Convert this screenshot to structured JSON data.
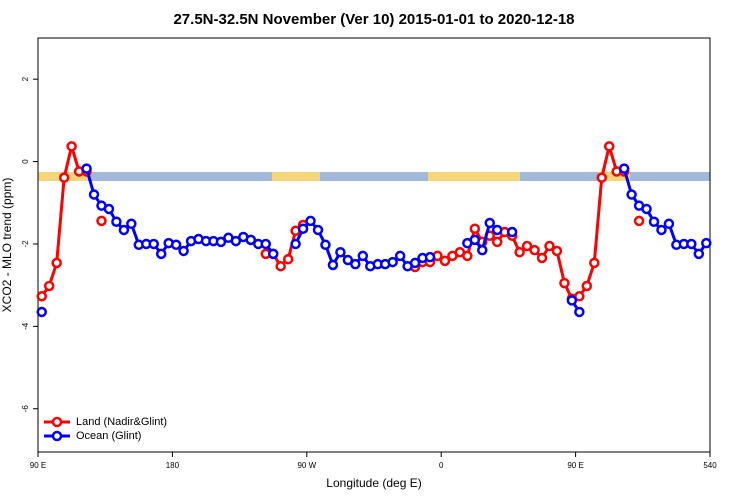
{
  "chart_data": {
    "type": "line",
    "title": "27.5N-32.5N November (Ver 10)   2015-01-01 to 2020-12-18",
    "x_label": "Longitude (deg E)",
    "y_label": "XCO2 - MLO trend (ppm)",
    "x": [
      92.5,
      97.5,
      102.5,
      107.5,
      112.5,
      117.5,
      122.5,
      127.5,
      132.5,
      137.5,
      142.5,
      147.5,
      152.5,
      157.5,
      162.5,
      167.5,
      172.5,
      177.5,
      182.5,
      187.5,
      192.5,
      197.5,
      202.5,
      207.5,
      212.5,
      217.5,
      222.5,
      227.5,
      232.5,
      237.5,
      242.5,
      247.5,
      252.5,
      257.5,
      262.5,
      267.5,
      272.5,
      277.5,
      282.5,
      287.5,
      292.5,
      297.5,
      302.5,
      307.5,
      312.5,
      317.5,
      322.5,
      327.5,
      332.5,
      337.5,
      342.5,
      347.5,
      352.5,
      357.5,
      362.5,
      367.5,
      372.5,
      377.5,
      382.5,
      387.5,
      392.5,
      397.5,
      402.5,
      407.5,
      412.5,
      417.5,
      422.5,
      427.5,
      432.5,
      437.5,
      442.5,
      447.5,
      452.5,
      457.5,
      462.5,
      467.5,
      472.5,
      477.5,
      482.5,
      487.5,
      492.5,
      497.5,
      502.5,
      507.5,
      512.5,
      517.5,
      522.5,
      527.5,
      532.5,
      537.5
    ],
    "series": [
      {
        "name": "Land (Nadir&Glint)",
        "color": "#ff0000",
        "values": [
          -3.27,
          -3.02,
          -2.46,
          -0.39,
          0.37,
          -0.24,
          -0.24,
          null,
          -1.44,
          null,
          null,
          null,
          null,
          null,
          null,
          null,
          null,
          null,
          null,
          null,
          null,
          null,
          null,
          null,
          null,
          null,
          null,
          null,
          null,
          null,
          -2.24,
          -2.24,
          -2.54,
          -2.37,
          -1.68,
          -1.54,
          null,
          null,
          null,
          null,
          null,
          null,
          null,
          null,
          null,
          null,
          null,
          null,
          null,
          null,
          -2.56,
          -2.44,
          -2.44,
          -2.29,
          -2.41,
          -2.29,
          -2.2,
          -2.29,
          -1.63,
          -1.95,
          -1.8,
          -1.95,
          -1.71,
          -1.8,
          -2.2,
          -2.05,
          -2.15,
          -2.34,
          -2.05,
          -2.17,
          -2.95,
          -3.33,
          -3.27,
          -3.02,
          -2.46,
          -0.39,
          0.37,
          -0.24,
          -0.24,
          null,
          -1.44,
          null,
          null,
          null,
          null,
          null,
          null,
          null,
          null,
          null
        ]
      },
      {
        "name": "Ocean (Glint)",
        "color": "#0000ff",
        "values": [
          -3.65,
          null,
          null,
          null,
          null,
          null,
          -0.17,
          -0.8,
          -1.07,
          -1.15,
          -1.46,
          -1.66,
          -1.51,
          -2.02,
          -2.0,
          -2.0,
          -2.24,
          -1.98,
          -2.02,
          -2.17,
          -1.93,
          -1.88,
          -1.93,
          -1.93,
          -1.95,
          -1.85,
          -1.93,
          -1.83,
          -1.9,
          -2.0,
          -2.0,
          -2.24,
          null,
          null,
          -2.0,
          -1.63,
          -1.44,
          -1.66,
          -2.02,
          -2.51,
          -2.2,
          -2.39,
          -2.49,
          -2.29,
          -2.54,
          -2.49,
          -2.49,
          -2.44,
          -2.29,
          -2.54,
          -2.46,
          -2.34,
          -2.32,
          null,
          null,
          null,
          null,
          -1.98,
          -1.9,
          -2.15,
          -1.49,
          -1.66,
          null,
          -1.71,
          null,
          null,
          null,
          null,
          null,
          null,
          null,
          -3.37,
          -3.65,
          null,
          null,
          null,
          null,
          null,
          -0.17,
          -0.8,
          -1.07,
          -1.15,
          -1.46,
          -1.66,
          -1.51,
          -2.02,
          -2.0,
          -2.0,
          -2.24,
          -1.98
        ]
      }
    ],
    "xlim": [
      90,
      540
    ],
    "ylim": [
      -7.05,
      3
    ],
    "xticks": [
      {
        "value": 90,
        "label": "90 E"
      },
      180,
      {
        "value": 270,
        "label": "90 W"
      },
      {
        "value": 360,
        "label": "0"
      },
      {
        "value": 450,
        "label": "90 E"
      },
      540
    ],
    "yticks": [
      2,
      0,
      -2,
      -4,
      -6
    ],
    "legend": "bottom-left"
  }
}
